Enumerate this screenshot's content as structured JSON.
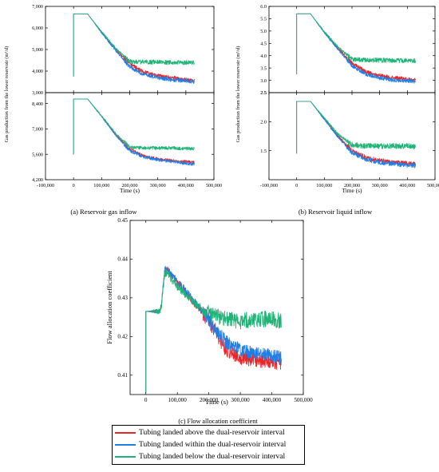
{
  "colors": {
    "above": "#e8262a",
    "within": "#1f7ee8",
    "below": "#1fb377"
  },
  "legend": [
    {
      "key": "above",
      "label": "Tubing landed above the dual-reservoir interval"
    },
    {
      "key": "within",
      "label": "Tubing landed within the dual-reservoir interval"
    },
    {
      "key": "below",
      "label": "Tubing landed below the dual-reservoir interval"
    }
  ],
  "chart_data": [
    {
      "id": "a",
      "type": "line",
      "caption": "(a) Reservoir gas inflow",
      "xlabel": "Time (s)",
      "ylabel": "Gas production from the lower reservoir (m³/d)",
      "xlim": [
        -100000,
        500000
      ],
      "xticks": [
        "-100,000",
        "0",
        "100,000",
        "200,000",
        "300,000",
        "400,000",
        "500,000"
      ],
      "xtick_values": [
        -100000,
        0,
        100000,
        200000,
        300000,
        400000,
        500000
      ],
      "panels": [
        {
          "ylim": [
            3000,
            7000
          ],
          "yticks": [
            "3,000",
            "4,000",
            "5,000",
            "6,000",
            "7,000"
          ],
          "ytick_values": [
            3000,
            4000,
            5000,
            6000,
            7000
          ],
          "series": [
            {
              "key": "above",
              "x": [
                0,
                0,
                50000,
                100000,
                150000,
                200000,
                250000,
                300000,
                350000,
                400000,
                430000
              ],
              "y": [
                3750,
                6650,
                6650,
                5800,
                5000,
                4350,
                3950,
                3800,
                3700,
                3600,
                3550
              ],
              "noise": 55
            },
            {
              "key": "within",
              "x": [
                0,
                0,
                50000,
                100000,
                150000,
                200000,
                250000,
                300000,
                350000,
                400000,
                430000
              ],
              "y": [
                3750,
                6650,
                6650,
                5780,
                4950,
                4200,
                3850,
                3700,
                3600,
                3550,
                3500
              ],
              "noise": 60
            },
            {
              "key": "below",
              "x": [
                0,
                0,
                50000,
                100000,
                150000,
                200000,
                250000,
                300000,
                350000,
                400000,
                430000
              ],
              "y": [
                3750,
                6650,
                6650,
                5820,
                5050,
                4450,
                4420,
                4420,
                4400,
                4400,
                4380
              ],
              "noise": 65
            }
          ]
        },
        {
          "ylim": [
            4200,
            9000
          ],
          "yticks": [
            "4,200",
            "5,600",
            "7,000",
            "8,400"
          ],
          "ytick_values": [
            4200,
            5600,
            7000,
            8400
          ],
          "series": [
            {
              "key": "above",
              "x": [
                0,
                0,
                50000,
                100000,
                150000,
                200000,
                250000,
                300000,
                350000,
                400000,
                430000
              ],
              "y": [
                5600,
                8650,
                8650,
                7700,
                6700,
                5900,
                5500,
                5350,
                5250,
                5200,
                5150
              ],
              "noise": 50
            },
            {
              "key": "within",
              "x": [
                0,
                0,
                50000,
                100000,
                150000,
                200000,
                250000,
                300000,
                350000,
                400000,
                430000
              ],
              "y": [
                5600,
                8650,
                8650,
                7680,
                6650,
                5800,
                5450,
                5300,
                5200,
                5100,
                5050
              ],
              "noise": 55
            },
            {
              "key": "below",
              "x": [
                0,
                0,
                50000,
                100000,
                150000,
                200000,
                250000,
                300000,
                350000,
                400000,
                430000
              ],
              "y": [
                5600,
                8650,
                8650,
                7720,
                6750,
                6000,
                5950,
                5950,
                5950,
                5920,
                5900
              ],
              "noise": 60
            }
          ]
        }
      ]
    },
    {
      "id": "b",
      "type": "line",
      "caption": "(b) Reservoir liquid inflow",
      "xlabel": "Time (s)",
      "ylabel": "Gas production from the lower reservoir (m³/d)",
      "xlim": [
        -100000,
        500000
      ],
      "xticks": [
        "-100,000",
        "0",
        "100,000",
        "200,000",
        "300,000",
        "400,000",
        "500,000"
      ],
      "xtick_values": [
        -100000,
        0,
        100000,
        200000,
        300000,
        400000,
        500000
      ],
      "panels": [
        {
          "ylim": [
            2.5,
            6.0
          ],
          "yticks": [
            "2.5",
            "3.0",
            "3.5",
            "4.0",
            "4.5",
            "5.0",
            "5.5",
            "6.0"
          ],
          "ytick_values": [
            2.5,
            3.0,
            3.5,
            4.0,
            4.5,
            5.0,
            5.5,
            6.0
          ],
          "series": [
            {
              "key": "above",
              "x": [
                0,
                0,
                50000,
                100000,
                150000,
                200000,
                250000,
                300000,
                350000,
                400000,
                430000
              ],
              "y": [
                3.25,
                5.7,
                5.7,
                4.95,
                4.3,
                3.7,
                3.35,
                3.2,
                3.1,
                3.05,
                3.0
              ],
              "noise": 0.05
            },
            {
              "key": "within",
              "x": [
                0,
                0,
                50000,
                100000,
                150000,
                200000,
                250000,
                300000,
                350000,
                400000,
                430000
              ],
              "y": [
                3.25,
                5.7,
                5.7,
                4.93,
                4.25,
                3.6,
                3.25,
                3.1,
                3.0,
                2.98,
                2.95
              ],
              "noise": 0.05
            },
            {
              "key": "below",
              "x": [
                0,
                0,
                50000,
                100000,
                150000,
                200000,
                250000,
                300000,
                350000,
                400000,
                430000
              ],
              "y": [
                3.25,
                5.7,
                5.7,
                4.97,
                4.35,
                3.85,
                3.82,
                3.82,
                3.8,
                3.8,
                3.8
              ],
              "noise": 0.06
            }
          ]
        },
        {
          "ylim": [
            1.0,
            2.5
          ],
          "yticks": [
            "1.5",
            "2.0",
            "2.5"
          ],
          "ytick_values": [
            1.5,
            2.0,
            2.5
          ],
          "series": [
            {
              "key": "above",
              "x": [
                0,
                0,
                50000,
                100000,
                150000,
                200000,
                250000,
                300000,
                350000,
                400000,
                430000
              ],
              "y": [
                1.45,
                2.35,
                2.35,
                2.05,
                1.75,
                1.5,
                1.38,
                1.33,
                1.3,
                1.28,
                1.27
              ],
              "noise": 0.025
            },
            {
              "key": "within",
              "x": [
                0,
                0,
                50000,
                100000,
                150000,
                200000,
                250000,
                300000,
                350000,
                400000,
                430000
              ],
              "y": [
                1.45,
                2.35,
                2.35,
                2.04,
                1.73,
                1.47,
                1.35,
                1.3,
                1.27,
                1.25,
                1.24
              ],
              "noise": 0.025
            },
            {
              "key": "below",
              "x": [
                0,
                0,
                50000,
                100000,
                150000,
                200000,
                250000,
                300000,
                350000,
                400000,
                430000
              ],
              "y": [
                1.45,
                2.35,
                2.35,
                2.06,
                1.78,
                1.6,
                1.58,
                1.58,
                1.58,
                1.58,
                1.57
              ],
              "noise": 0.03
            }
          ]
        }
      ]
    },
    {
      "id": "c",
      "type": "line",
      "caption": "(c) Flow allocation coefficient",
      "xlabel": "Time (s)",
      "ylabel": "Flow allocation coefficient",
      "xlim": [
        -50000,
        500000
      ],
      "xticks": [
        "0",
        "100,000",
        "200,000",
        "300,000",
        "400,000",
        "500,000"
      ],
      "xtick_values": [
        0,
        100000,
        200000,
        300000,
        400000,
        500000
      ],
      "panels": [
        {
          "ylim": [
            0.405,
            0.45
          ],
          "yticks": [
            "0.41",
            "0.42",
            "0.43",
            "0.44",
            "0.45"
          ],
          "ytick_values": [
            0.41,
            0.42,
            0.43,
            0.44,
            0.45
          ],
          "series": [
            {
              "key": "above",
              "x": [
                0,
                0,
                3000,
                45000,
                50000,
                60000,
                70000,
                100000,
                150000,
                200000,
                250000,
                300000,
                350000,
                400000,
                430000
              ],
              "y": [
                0.4055,
                0.4265,
                0.4265,
                0.4265,
                0.4285,
                0.4375,
                0.437,
                0.434,
                0.429,
                0.424,
                0.417,
                0.4145,
                0.414,
                0.4135,
                0.413
              ],
              "noise": 0.0012
            },
            {
              "key": "within",
              "x": [
                0,
                0,
                3000,
                45000,
                50000,
                60000,
                70000,
                100000,
                150000,
                200000,
                250000,
                300000,
                350000,
                400000,
                430000
              ],
              "y": [
                0.4055,
                0.4265,
                0.4265,
                0.4265,
                0.4285,
                0.4375,
                0.437,
                0.4345,
                0.4295,
                0.4245,
                0.419,
                0.4165,
                0.4155,
                0.415,
                0.4145
              ],
              "noise": 0.0011
            },
            {
              "key": "below",
              "x": [
                0,
                0,
                3000,
                45000,
                50000,
                60000,
                70000,
                100000,
                150000,
                200000,
                250000,
                300000,
                350000,
                400000,
                430000
              ],
              "y": [
                0.4055,
                0.4265,
                0.4265,
                0.4265,
                0.4285,
                0.4365,
                0.436,
                0.433,
                0.429,
                0.426,
                0.4245,
                0.424,
                0.4245,
                0.4245,
                0.424
              ],
              "noise": 0.0013
            }
          ]
        }
      ]
    }
  ]
}
